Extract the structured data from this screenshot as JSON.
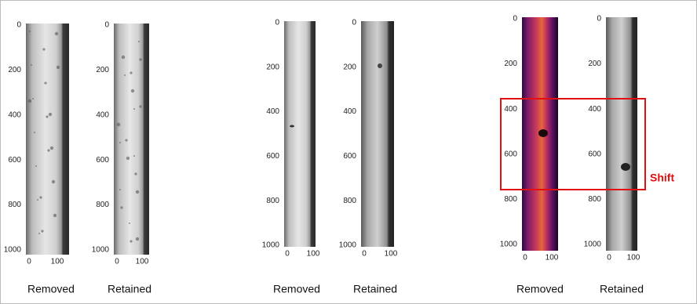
{
  "panels": [
    {
      "yticks": [
        0,
        200,
        400,
        600,
        800,
        1000
      ],
      "xticks": [
        0,
        100
      ],
      "caption": "Removed"
    },
    {
      "yticks": [
        0,
        200,
        400,
        600,
        800,
        1000
      ],
      "xticks": [
        0,
        100
      ],
      "caption": "Retained"
    },
    {
      "yticks": [
        0,
        200,
        400,
        600,
        800,
        1000
      ],
      "xticks": [
        0,
        100
      ],
      "caption": "Removed"
    },
    {
      "yticks": [
        0,
        200,
        400,
        600,
        800,
        1000
      ],
      "xticks": [
        0,
        100
      ],
      "caption": "Retained"
    },
    {
      "yticks": [
        0,
        200,
        400,
        600,
        800,
        1000
      ],
      "xticks": [
        0,
        100
      ],
      "caption": "Removed"
    },
    {
      "yticks": [
        0,
        200,
        400,
        600,
        800,
        1000
      ],
      "xticks": [
        0,
        100
      ],
      "caption": "Retained"
    }
  ],
  "annotation": "Shift"
}
